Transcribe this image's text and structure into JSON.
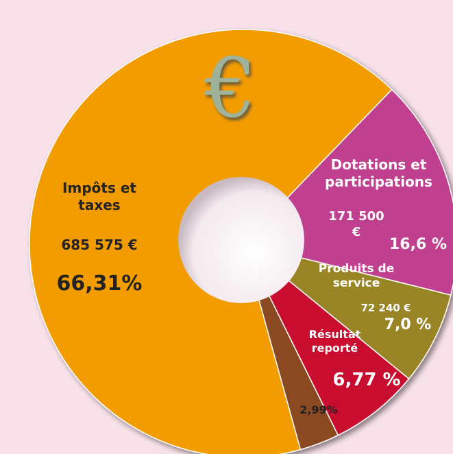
{
  "chart_data": {
    "type": "pie",
    "donut": true,
    "symbol": "€",
    "categories": [
      "Dotations et participations",
      "Produits de service",
      "Résultat reporté",
      "",
      "Impôts et taxes"
    ],
    "values": [
      16.6,
      7.0,
      6.77,
      2.99,
      66.31
    ],
    "value_labels": [
      "16,6 %",
      "7,0 %",
      "6,77 %",
      "2,99%",
      "66,31%"
    ],
    "amount_labels": [
      "171 500 €",
      "72 240 €",
      "",
      "",
      "685 575 €"
    ],
    "colors": [
      "#c0408f",
      "#9a8526",
      "#c8102e",
      "#8b4a22",
      "#f39c00"
    ]
  }
}
